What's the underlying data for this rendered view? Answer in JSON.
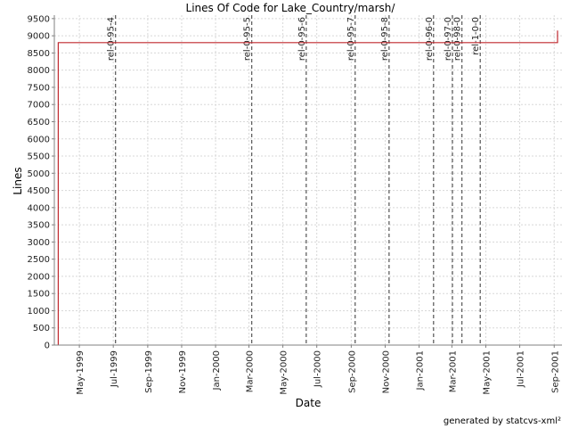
{
  "chart_data": {
    "type": "line",
    "title": "Lines Of Code for Lake_Country/marsh/",
    "xlabel": "Date",
    "ylabel": "Lines",
    "ylim": [
      0,
      9600
    ],
    "xlim": [
      "1999-03-17",
      "2001-09-15"
    ],
    "y_ticks": [
      0,
      500,
      1000,
      1500,
      2000,
      2500,
      3000,
      3500,
      4000,
      4500,
      5000,
      5500,
      6000,
      6500,
      7000,
      7500,
      8000,
      8500,
      9000,
      9500
    ],
    "x_ticks": [
      {
        "date": "1999-05-01",
        "label": "May-1999"
      },
      {
        "date": "1999-07-01",
        "label": "Jul-1999"
      },
      {
        "date": "1999-09-01",
        "label": "Sep-1999"
      },
      {
        "date": "1999-11-01",
        "label": "Nov-1999"
      },
      {
        "date": "2000-01-01",
        "label": "Jan-2000"
      },
      {
        "date": "2000-03-01",
        "label": "Mar-2000"
      },
      {
        "date": "2000-05-01",
        "label": "May-2000"
      },
      {
        "date": "2000-07-01",
        "label": "Jul-2000"
      },
      {
        "date": "2000-09-01",
        "label": "Sep-2000"
      },
      {
        "date": "2000-11-01",
        "label": "Nov-2000"
      },
      {
        "date": "2001-01-01",
        "label": "Jan-2001"
      },
      {
        "date": "2001-03-01",
        "label": "Mar-2001"
      },
      {
        "date": "2001-05-01",
        "label": "May-2001"
      },
      {
        "date": "2001-07-01",
        "label": "Jul-2001"
      },
      {
        "date": "2001-09-01",
        "label": "Sep-2001"
      }
    ],
    "grid": true,
    "series": [
      {
        "color": "#c0292f",
        "points": [
          {
            "x": "1999-03-24",
            "y": 0
          },
          {
            "x": "1999-03-24",
            "y": 8800
          },
          {
            "x": "2001-09-07",
            "y": 8800
          },
          {
            "x": "2001-09-07",
            "y": 9150
          }
        ]
      }
    ],
    "markers": [
      {
        "date": "1999-07-05",
        "label": "rel-0-95-4"
      },
      {
        "date": "2000-03-06",
        "label": "rel-0-95-5"
      },
      {
        "date": "2000-06-12",
        "label": "rel-0-95-6"
      },
      {
        "date": "2000-09-08",
        "label": "rel-0-95-7"
      },
      {
        "date": "2000-11-08",
        "label": "rel-0-95-8"
      },
      {
        "date": "2001-01-27",
        "label": "rel-0-96-0"
      },
      {
        "date": "2001-03-02",
        "label": "rel-0-97-0"
      },
      {
        "date": "2001-03-19",
        "label": "rel-0-98-0"
      },
      {
        "date": "2001-04-21",
        "label": "rel-1-0-0"
      }
    ]
  },
  "footer": {
    "credit": "generated by statcvs-xml²"
  },
  "colors": {
    "grid": "#d8d8d8",
    "axis": "#808080",
    "marker": "#606060"
  }
}
